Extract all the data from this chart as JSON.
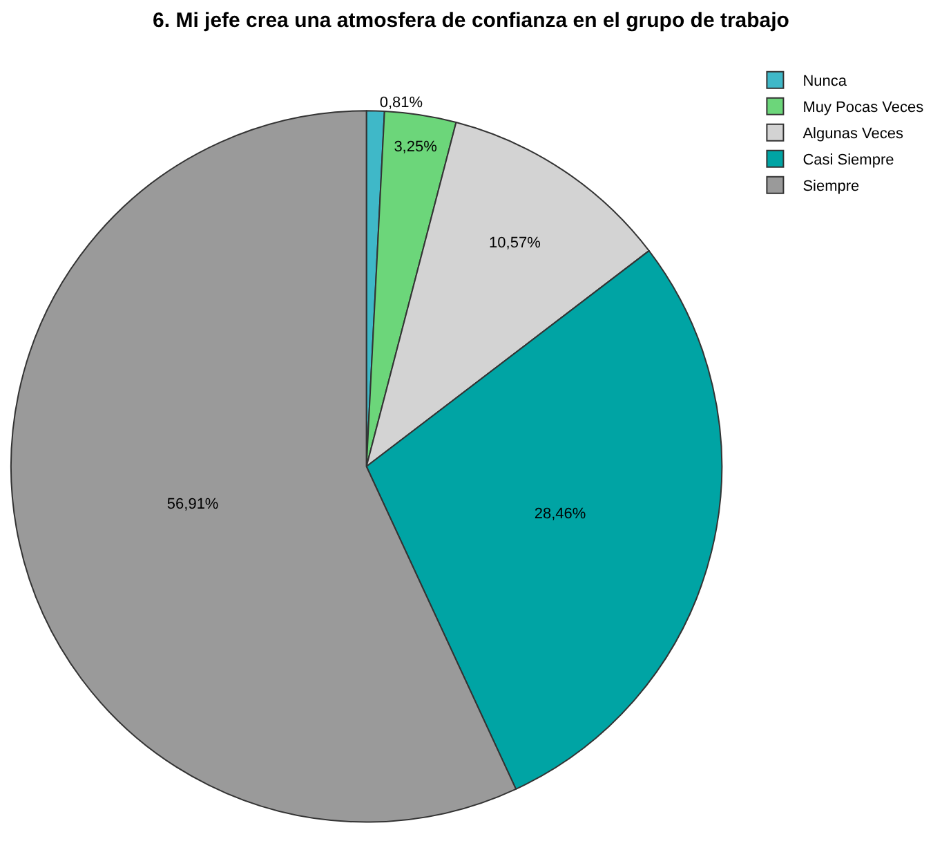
{
  "chart_data": {
    "type": "pie",
    "title": "6. Mi jefe crea una atmosfera de confianza en el grupo de trabajo",
    "categories": [
      "Nunca",
      "Muy Pocas Veces",
      "Algunas Veces",
      "Casi Siempre",
      "Siempre"
    ],
    "values": [
      0.81,
      3.25,
      10.57,
      28.46,
      56.91
    ],
    "value_labels": [
      "0,81%",
      "3,25%",
      "10,57%",
      "28,46%",
      "56,91%"
    ],
    "colors": [
      "#3fb8c8",
      "#6cd67a",
      "#d3d3d3",
      "#00a4a4",
      "#9a9a9a"
    ],
    "legend": "top right"
  }
}
